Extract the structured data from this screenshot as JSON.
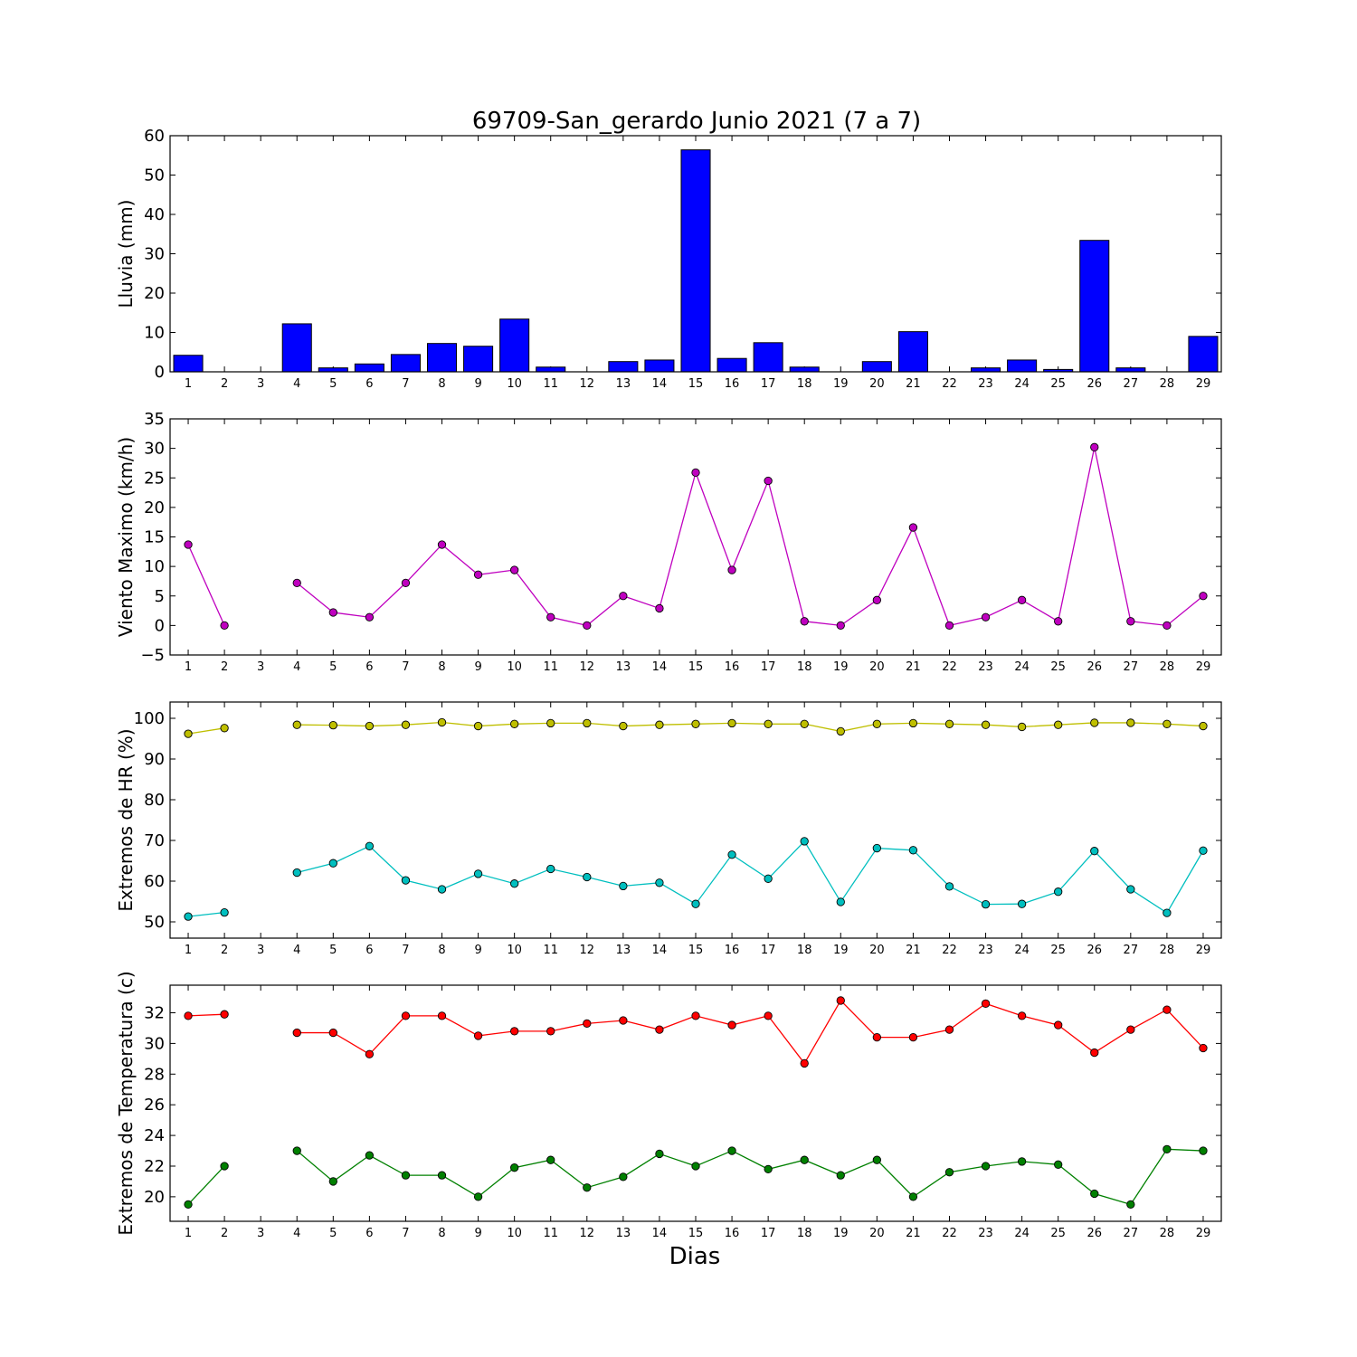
{
  "title": "69709-San_gerardo Junio 2021  (7 a 7)",
  "xlabel": "Dias",
  "chart_data": [
    {
      "type": "bar",
      "ylabel": "Lluvia (mm)",
      "ylim": [
        0,
        60
      ],
      "yticks": [
        0,
        10,
        20,
        30,
        40,
        50,
        60
      ],
      "x": [
        1,
        2,
        3,
        4,
        5,
        6,
        7,
        8,
        9,
        10,
        11,
        12,
        13,
        14,
        15,
        16,
        17,
        18,
        19,
        20,
        21,
        22,
        23,
        24,
        25,
        26,
        27,
        28,
        29
      ],
      "xtick_labels": [
        "1",
        "2",
        "3",
        "4",
        "5",
        "6",
        "7",
        "8",
        "9",
        "10",
        "11",
        "12",
        "13",
        "14",
        "15",
        "16",
        "17",
        "18",
        "19",
        "20",
        "21",
        "22",
        "23",
        "24",
        "25",
        "26",
        "27",
        "28",
        "29"
      ],
      "series": [
        {
          "color": "#0000ff",
          "values": [
            4.2,
            0,
            0,
            12.2,
            1.0,
            2.0,
            4.4,
            7.2,
            6.5,
            13.4,
            1.2,
            0,
            2.6,
            3.0,
            56.4,
            3.4,
            7.4,
            1.2,
            0,
            2.6,
            10.2,
            0,
            1.0,
            3.0,
            0.6,
            33.4,
            1.0,
            0,
            9.0
          ]
        }
      ]
    },
    {
      "type": "line",
      "ylabel": "Viento Maximo (km/h)",
      "ylim": [
        -5,
        35
      ],
      "yticks": [
        -5,
        0,
        5,
        10,
        15,
        20,
        25,
        30,
        35
      ],
      "x": [
        1,
        2,
        3,
        4,
        5,
        6,
        7,
        8,
        9,
        10,
        11,
        12,
        13,
        14,
        15,
        16,
        17,
        18,
        19,
        20,
        21,
        22,
        23,
        24,
        25,
        26,
        27,
        28,
        29
      ],
      "xtick_labels": [
        "1",
        "2",
        "3",
        "4",
        "5",
        "6",
        "7",
        "8",
        "9",
        "10",
        "11",
        "12",
        "13",
        "14",
        "15",
        "16",
        "17",
        "18",
        "19",
        "20",
        "21",
        "22",
        "23",
        "24",
        "25",
        "26",
        "27",
        "28",
        "29"
      ],
      "series": [
        {
          "color": "#bf00bf",
          "values": [
            13.7,
            0,
            null,
            7.2,
            2.2,
            1.4,
            7.2,
            13.7,
            8.6,
            9.4,
            1.4,
            0,
            5.0,
            2.9,
            25.9,
            9.4,
            24.5,
            0.7,
            0,
            4.3,
            16.6,
            0,
            1.4,
            4.3,
            0.7,
            30.2,
            0.7,
            0,
            5.0
          ]
        }
      ]
    },
    {
      "type": "line",
      "ylabel": "Extremos de HR (%)",
      "ylim": [
        46,
        104
      ],
      "yticks": [
        50,
        60,
        70,
        80,
        90,
        100
      ],
      "x": [
        1,
        2,
        3,
        4,
        5,
        6,
        7,
        8,
        9,
        10,
        11,
        12,
        13,
        14,
        15,
        16,
        17,
        18,
        19,
        20,
        21,
        22,
        23,
        24,
        25,
        26,
        27,
        28,
        29
      ],
      "xtick_labels": [
        "1",
        "2",
        "3",
        "4",
        "5",
        "6",
        "7",
        "8",
        "9",
        "10",
        "11",
        "12",
        "13",
        "14",
        "15",
        "16",
        "17",
        "18",
        "19",
        "20",
        "21",
        "22",
        "23",
        "24",
        "25",
        "26",
        "27",
        "28",
        "29"
      ],
      "series": [
        {
          "color": "#bfbf00",
          "values": [
            96.2,
            97.6,
            null,
            98.4,
            98.3,
            98.1,
            98.4,
            99.0,
            98.1,
            98.6,
            98.8,
            98.8,
            98.1,
            98.4,
            98.6,
            98.8,
            98.6,
            98.6,
            96.8,
            98.6,
            98.8,
            98.6,
            98.4,
            97.9,
            98.4,
            98.9,
            98.9,
            98.6,
            98.1
          ]
        },
        {
          "color": "#00bfbf",
          "values": [
            51.3,
            52.3,
            null,
            62.1,
            64.4,
            68.6,
            60.2,
            58.0,
            61.8,
            59.4,
            63.0,
            61.0,
            58.8,
            59.6,
            54.4,
            66.5,
            60.6,
            69.8,
            54.9,
            68.1,
            67.6,
            58.7,
            54.3,
            54.4,
            57.4,
            67.4,
            58.0,
            52.2,
            67.5
          ]
        }
      ]
    },
    {
      "type": "line",
      "ylabel": "Extremos de Temperatura (c)",
      "ylim": [
        18.4,
        33.8
      ],
      "yticks": [
        20,
        22,
        24,
        26,
        28,
        30,
        32
      ],
      "x": [
        1,
        2,
        3,
        4,
        5,
        6,
        7,
        8,
        9,
        10,
        11,
        12,
        13,
        14,
        15,
        16,
        17,
        18,
        19,
        20,
        21,
        22,
        23,
        24,
        25,
        26,
        27,
        28,
        29
      ],
      "xtick_labels": [
        "1",
        "2",
        "3",
        "4",
        "5",
        "6",
        "7",
        "8",
        "9",
        "10",
        "11",
        "12",
        "13",
        "14",
        "15",
        "16",
        "17",
        "18",
        "19",
        "20",
        "21",
        "22",
        "23",
        "24",
        "25",
        "26",
        "27",
        "28",
        "29"
      ],
      "series": [
        {
          "color": "#ff0000",
          "values": [
            31.8,
            31.9,
            null,
            30.7,
            30.7,
            29.3,
            31.8,
            31.8,
            30.5,
            30.8,
            30.8,
            31.3,
            31.5,
            30.9,
            31.8,
            31.2,
            31.8,
            28.7,
            32.8,
            30.4,
            30.4,
            30.9,
            32.6,
            31.8,
            31.2,
            29.4,
            30.9,
            32.2,
            29.7
          ]
        },
        {
          "color": "#008000",
          "values": [
            19.5,
            22.0,
            null,
            23.0,
            21.0,
            22.7,
            21.4,
            21.4,
            20.0,
            21.9,
            22.4,
            20.6,
            21.3,
            22.8,
            22.0,
            23.0,
            21.8,
            22.4,
            21.4,
            22.4,
            20.0,
            21.6,
            22.0,
            22.3,
            22.1,
            20.2,
            19.5,
            23.1,
            23.0
          ]
        }
      ]
    }
  ]
}
